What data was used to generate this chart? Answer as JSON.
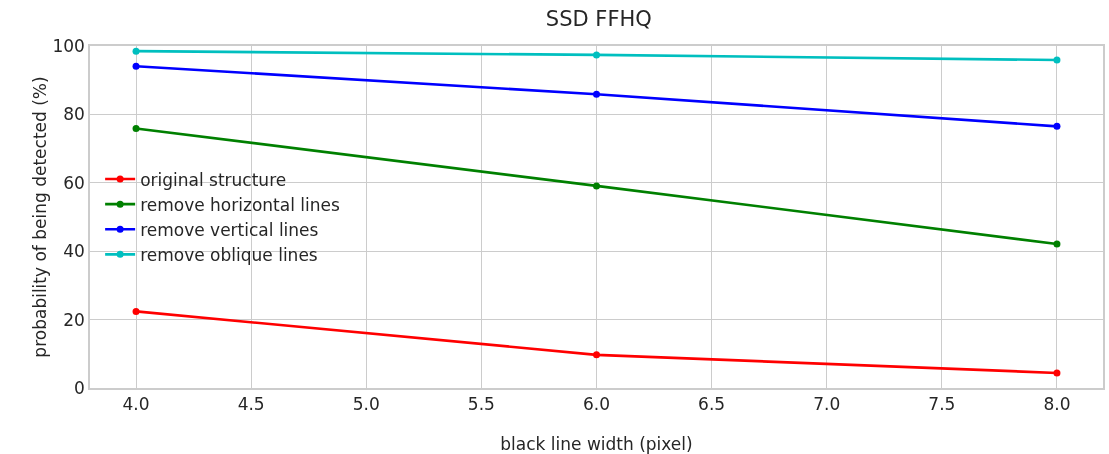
{
  "chart_data": {
    "type": "line",
    "title": "SSD FFHQ",
    "xlabel": "black line width (pixel)",
    "ylabel": "probability of being detected (%)",
    "x": [
      4.0,
      6.0,
      8.0
    ],
    "series": [
      {
        "name": "original structure",
        "color": "#ff0000",
        "values": [
          22.4,
          9.7,
          4.4
        ]
      },
      {
        "name": "remove horizontal lines",
        "color": "#008000",
        "values": [
          75.9,
          59.1,
          42.1
        ]
      },
      {
        "name": "remove vertical lines",
        "color": "#0000ff",
        "values": [
          94.1,
          85.9,
          76.5
        ]
      },
      {
        "name": "remove oblique lines",
        "color": "#00bfbf",
        "values": [
          98.5,
          97.4,
          95.9
        ]
      }
    ],
    "xlim": [
      3.8,
      8.2
    ],
    "xticks": [
      {
        "value": 4,
        "label": "4.0"
      },
      {
        "value": 4.5,
        "label": "4.5"
      },
      {
        "value": 5,
        "label": "5.0"
      },
      {
        "value": 5.5,
        "label": "5.5"
      },
      {
        "value": 6,
        "label": "6.0"
      },
      {
        "value": 6.5,
        "label": "6.5"
      },
      {
        "value": 7,
        "label": "7.0"
      },
      {
        "value": 7.5,
        "label": "7.5"
      },
      {
        "value": 8,
        "label": "8.0"
      }
    ],
    "ylim": [
      0,
      100
    ],
    "yticks": [
      0,
      20,
      40,
      60,
      80,
      100
    ],
    "grid": true,
    "legend": "left",
    "marker": "circle",
    "line_style": "solid"
  }
}
